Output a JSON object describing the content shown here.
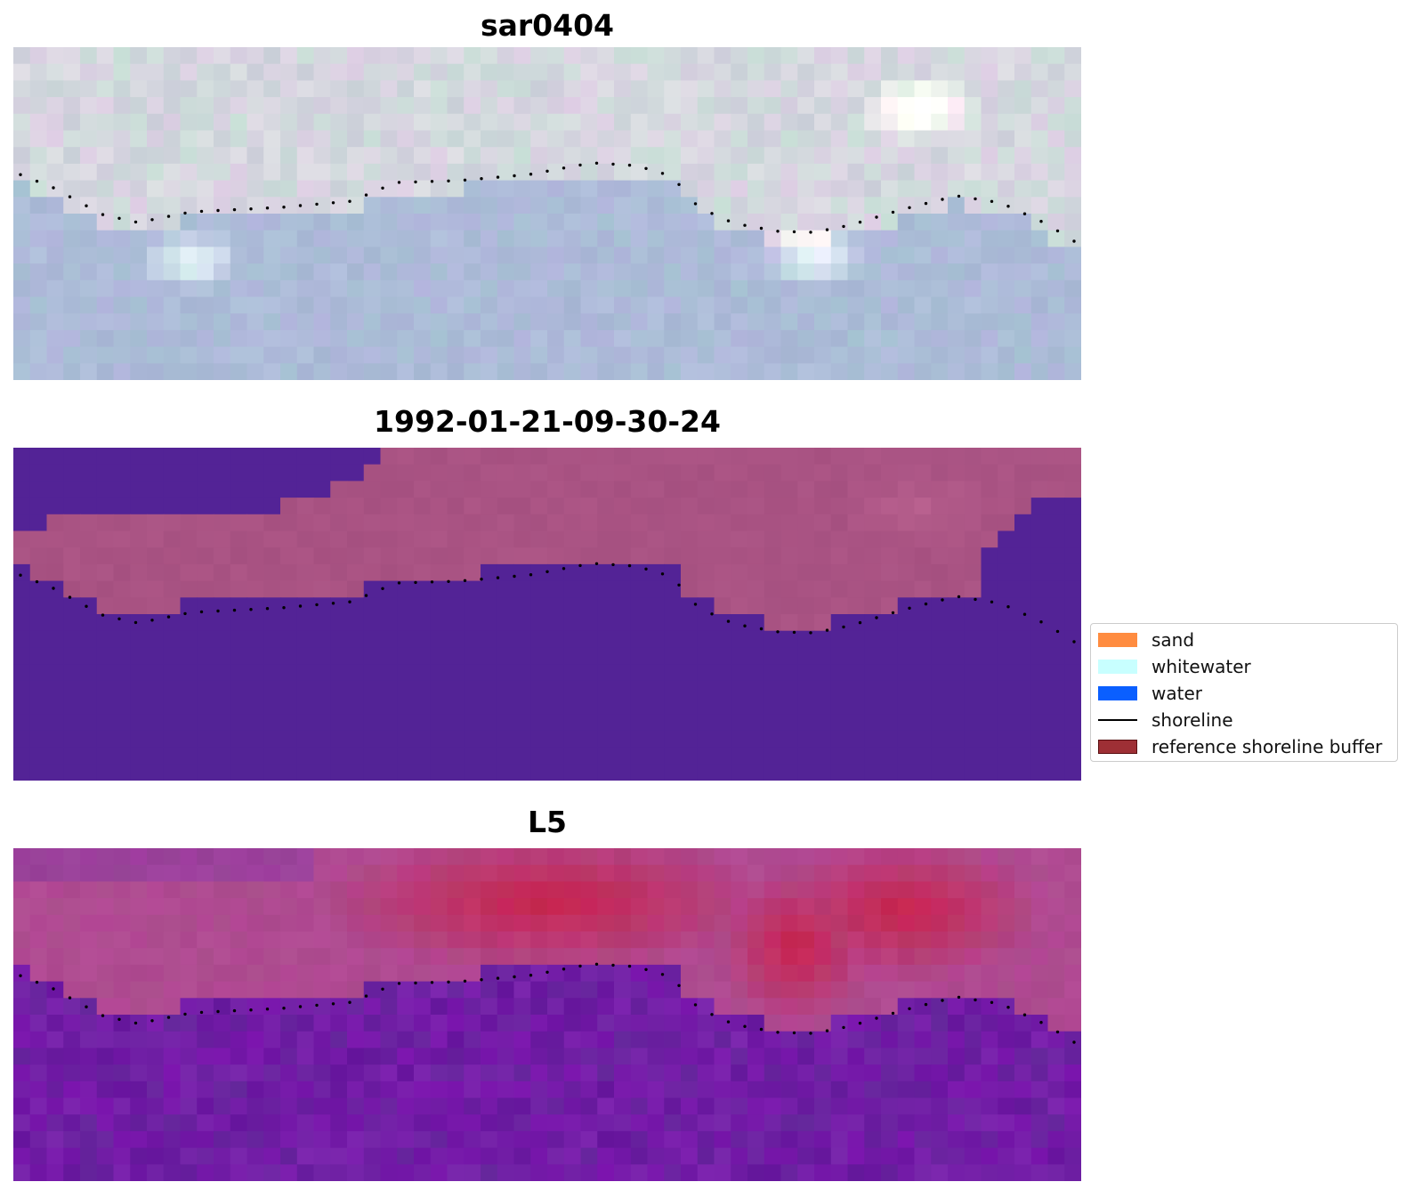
{
  "panels": [
    {
      "id": "sar",
      "title": "sar0404",
      "palette": "rgb"
    },
    {
      "id": "classified",
      "title": "1992-01-21-09-30-24",
      "palette": "class"
    },
    {
      "id": "l5",
      "title": "L5",
      "palette": "index"
    }
  ],
  "legend": {
    "items": [
      {
        "label": "sand",
        "kind": "patch",
        "color": "#ff8c40",
        "border": "#ff8c40"
      },
      {
        "label": "whitewater",
        "kind": "patch",
        "color": "#c8ffff",
        "border": "#c8ffff"
      },
      {
        "label": "water",
        "kind": "patch",
        "color": "#0a5fff",
        "border": "#0a5fff"
      },
      {
        "label": "shoreline",
        "kind": "line",
        "color": "#000000"
      },
      {
        "label": "reference shoreline buffer",
        "kind": "patch",
        "color": "#9e2f35",
        "border": "#5a0f12"
      }
    ]
  },
  "colors": {
    "class_water_tint": "#532396",
    "class_land_tint": "#a9527f",
    "shoreline_dots": "#000000"
  }
}
